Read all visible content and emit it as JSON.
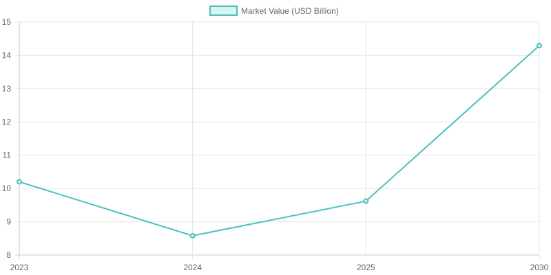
{
  "chart_data": {
    "type": "line",
    "categories": [
      "2023",
      "2024",
      "2025",
      "2030"
    ],
    "series": [
      {
        "name": "Market Value (USD Billion)",
        "values": [
          10.2,
          8.58,
          9.62,
          14.29
        ],
        "color": "#4bc0c0",
        "fill": "#dbf2f2"
      }
    ],
    "xlabel": "",
    "ylabel": "",
    "ylim": [
      8,
      15
    ],
    "yticks": [
      8,
      9,
      10,
      11,
      12,
      13,
      14,
      15
    ],
    "grid": true,
    "legend_position": "top-center",
    "grid_color": "#e5e5e5",
    "axis_color": "#c8c8c8"
  }
}
